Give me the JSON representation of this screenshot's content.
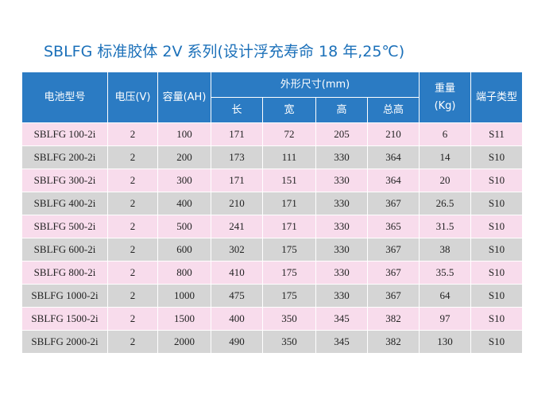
{
  "title": "SBLFG 标准胶体 2V 系列(设计浮充寿命 18 年,25℃)",
  "table": {
    "headers": [
      "电池型号",
      "电压(V)",
      "容量(AH)",
      "外形尺寸(mm)",
      "重量\n(Kg)",
      "端子类型"
    ],
    "subheaders": [
      "长",
      "宽",
      "高",
      "总高"
    ],
    "rows": [
      [
        "SBLFG 100-2i",
        "2",
        "100",
        "171",
        "72",
        "205",
        "210",
        "6",
        "S11"
      ],
      [
        "SBLFG 200-2i",
        "2",
        "200",
        "173",
        "111",
        "330",
        "364",
        "14",
        "S10"
      ],
      [
        "SBLFG 300-2i",
        "2",
        "300",
        "171",
        "151",
        "330",
        "364",
        "20",
        "S10"
      ],
      [
        "SBLFG 400-2i",
        "2",
        "400",
        "210",
        "171",
        "330",
        "367",
        "26.5",
        "S10"
      ],
      [
        "SBLFG 500-2i",
        "2",
        "500",
        "241",
        "171",
        "330",
        "365",
        "31.5",
        "S10"
      ],
      [
        "SBLFG 600-2i",
        "2",
        "600",
        "302",
        "175",
        "330",
        "367",
        "38",
        "S10"
      ],
      [
        "SBLFG 800-2i",
        "2",
        "800",
        "410",
        "175",
        "330",
        "367",
        "35.5",
        "S10"
      ],
      [
        "SBLFG 1000-2i",
        "2",
        "1000",
        "475",
        "175",
        "330",
        "367",
        "64",
        "S10"
      ],
      [
        "SBLFG 1500-2i",
        "2",
        "1500",
        "400",
        "350",
        "345",
        "382",
        "97",
        "S10"
      ],
      [
        "SBLFG 2000-2i",
        "2",
        "2000",
        "490",
        "350",
        "345",
        "382",
        "130",
        "S10"
      ]
    ]
  }
}
